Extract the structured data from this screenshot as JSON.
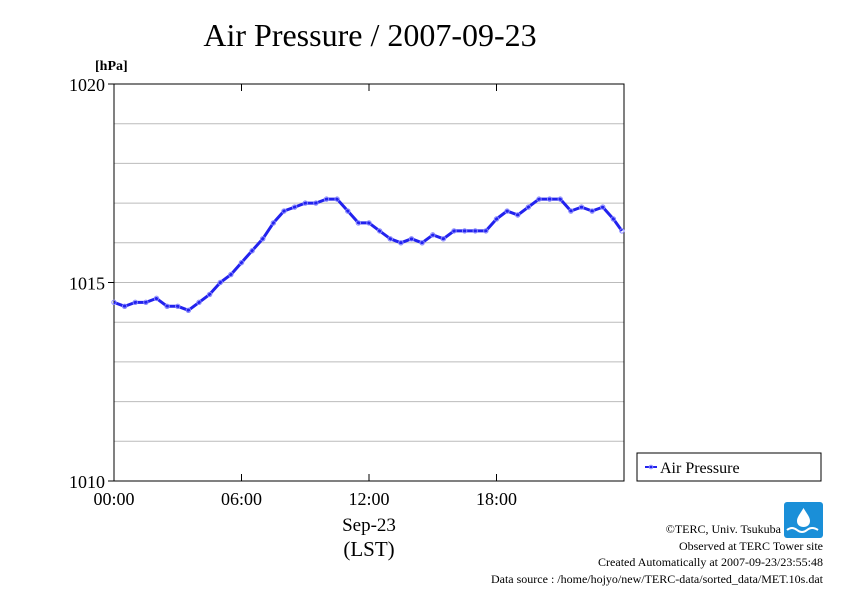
{
  "chart_data": {
    "type": "line",
    "title": "Air Pressure / 2007-09-23",
    "ylabel_unit": "[hPa]",
    "xlabel_lines": [
      "Sep-23",
      "(LST)"
    ],
    "xlim_hours": [
      0,
      24
    ],
    "ylim": [
      1010,
      1020
    ],
    "y_ticks": [
      1010,
      1015,
      1020
    ],
    "y_tick_labels": [
      "1010",
      "1015",
      "1020"
    ],
    "x_ticks_hours": [
      0,
      6,
      12,
      18
    ],
    "x_tick_labels": [
      "00:00",
      "06:00",
      "12:00",
      "18:00"
    ],
    "grid": true,
    "grid_y_step": 1,
    "legend_position": "bottom-right-outside",
    "series": [
      {
        "name": "Air Pressure",
        "color": "#2222ee",
        "marker_color": "#8888ff",
        "x_hours": [
          0.0,
          0.5,
          1.0,
          1.5,
          2.0,
          2.5,
          3.0,
          3.5,
          4.0,
          4.5,
          5.0,
          5.5,
          6.0,
          6.5,
          7.0,
          7.5,
          8.0,
          8.5,
          9.0,
          9.5,
          10.0,
          10.5,
          11.0,
          11.5,
          12.0,
          12.5,
          13.0,
          13.5,
          14.0,
          14.5,
          15.0,
          15.5,
          16.0,
          16.5,
          17.0,
          17.5,
          18.0,
          18.5,
          19.0,
          19.5,
          20.0,
          20.5,
          21.0,
          21.5,
          22.0,
          22.5,
          23.0,
          23.5,
          23.9
        ],
        "values": [
          1014.5,
          1014.4,
          1014.5,
          1014.5,
          1014.6,
          1014.4,
          1014.4,
          1014.3,
          1014.5,
          1014.7,
          1015.0,
          1015.2,
          1015.5,
          1015.8,
          1016.1,
          1016.5,
          1016.8,
          1016.9,
          1017.0,
          1017.0,
          1017.1,
          1017.1,
          1016.8,
          1016.5,
          1016.5,
          1016.3,
          1016.1,
          1016.0,
          1016.1,
          1016.0,
          1016.2,
          1016.1,
          1016.3,
          1016.3,
          1016.3,
          1016.3,
          1016.6,
          1016.8,
          1016.7,
          1016.9,
          1017.1,
          1017.1,
          1017.1,
          1016.8,
          1016.9,
          1016.8,
          1016.9,
          1016.6,
          1016.3
        ]
      }
    ]
  },
  "credits": [
    "©TERC, Univ. Tsukuba",
    "Observed at TERC Tower site",
    "Created Automatically at 2007-09-23/23:55:48",
    "Data source : /home/hojyo/new/TERC-data/sorted_data/MET.10s.dat"
  ],
  "logo": {
    "name": "terc-logo",
    "color": "#1a8fd8"
  }
}
